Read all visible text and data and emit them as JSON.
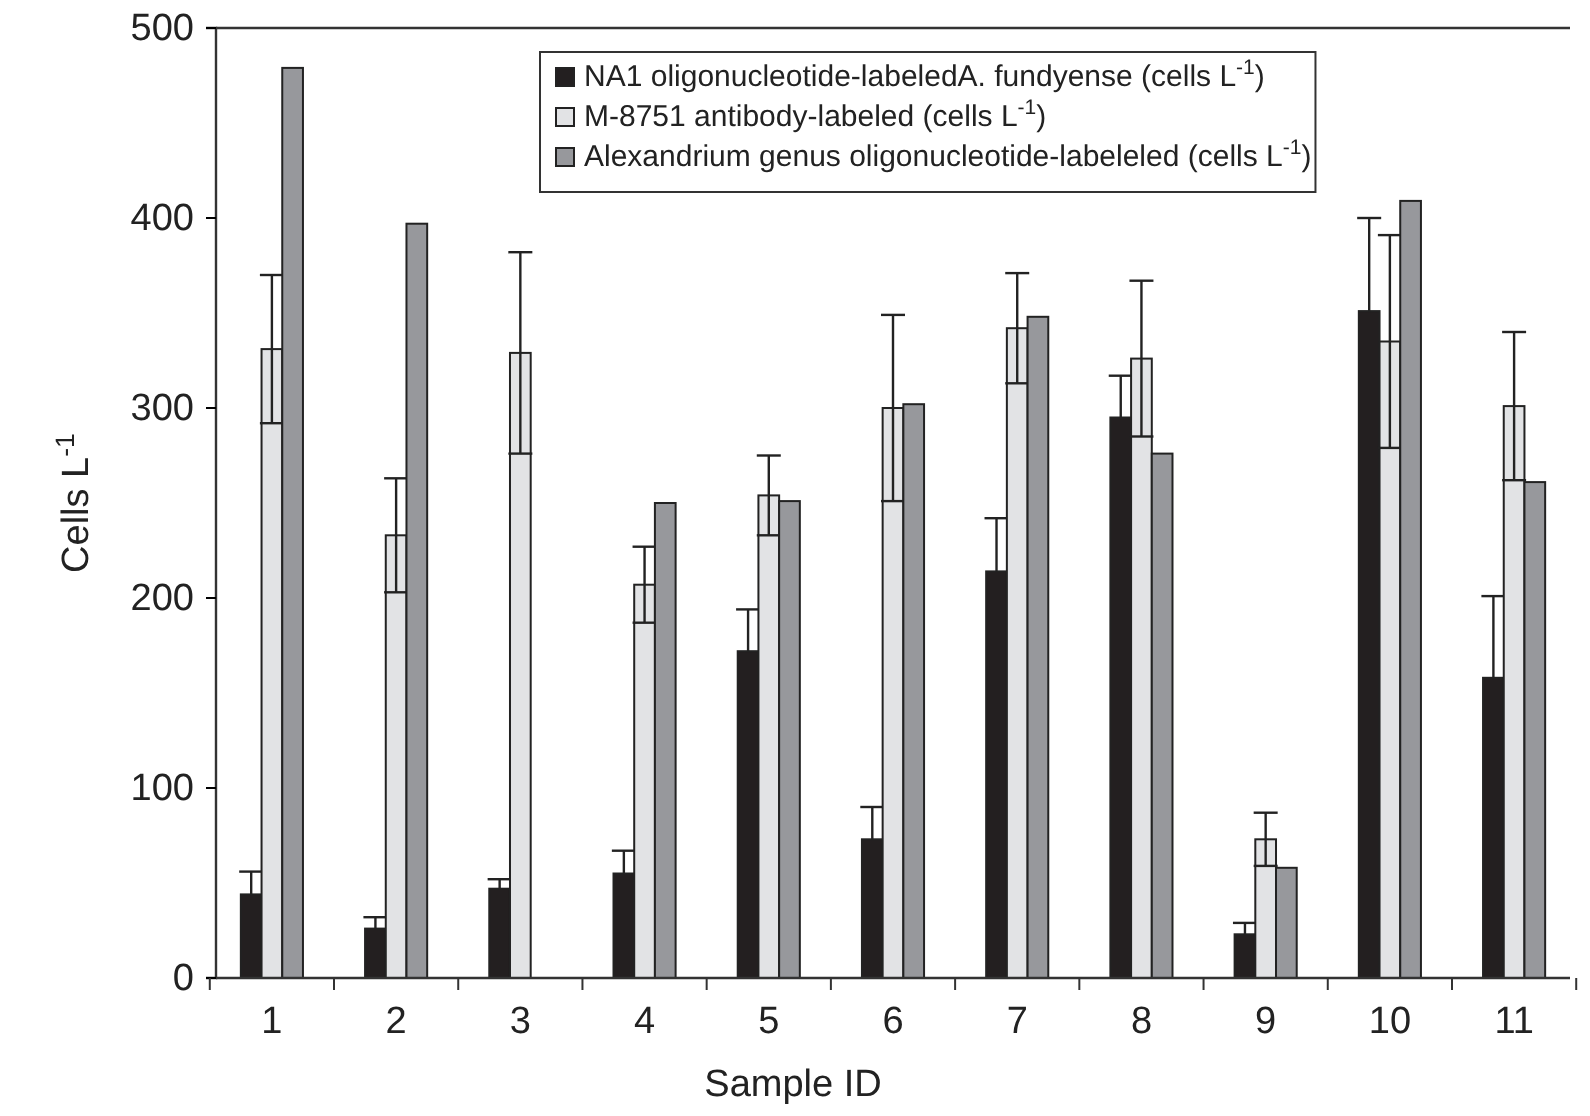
{
  "chart_data": {
    "type": "bar",
    "xlabel": "Sample ID",
    "ylabel": "Cells L$^{-1}$",
    "categories": [
      "1",
      "2",
      "3",
      "4",
      "5",
      "6",
      "7",
      "8",
      "9",
      "10",
      "11"
    ],
    "ylim": [
      0,
      500
    ],
    "yticks": [
      0,
      100,
      200,
      300,
      400,
      500
    ],
    "grid": false,
    "legend": "top right",
    "series": [
      {
        "name": "NA1 oligonucleotide-labeledA. fundyense (cells L$^{-1}$)",
        "color": "#231f20",
        "values": [
          44,
          26,
          47,
          55,
          172,
          73,
          214,
          295,
          23,
          351,
          158
        ],
        "errors": [
          [
            44,
            56
          ],
          [
            26,
            32
          ],
          [
            47,
            52
          ],
          [
            55,
            67
          ],
          [
            172,
            194
          ],
          [
            73,
            90
          ],
          [
            214,
            242
          ],
          [
            295,
            317
          ],
          [
            23,
            29
          ],
          [
            351,
            400
          ],
          [
            158,
            201
          ]
        ]
      },
      {
        "name": "M-8751 antibody-labeled (cells L$^{-1}$)",
        "color": "#e2e3e5",
        "values": [
          331,
          233,
          329,
          207,
          254,
          300,
          342,
          326,
          73,
          335,
          301
        ],
        "errors": [
          39,
          30,
          53,
          20,
          21,
          49,
          29,
          41,
          14,
          56,
          39
        ]
      },
      {
        "name": "Alexandrium genus oligonucleotide-labeleled (cells L$^{-1}$)",
        "color": "#97989c",
        "values": [
          479,
          397,
          null,
          250,
          251,
          302,
          348,
          276,
          58,
          409,
          261
        ]
      }
    ]
  }
}
